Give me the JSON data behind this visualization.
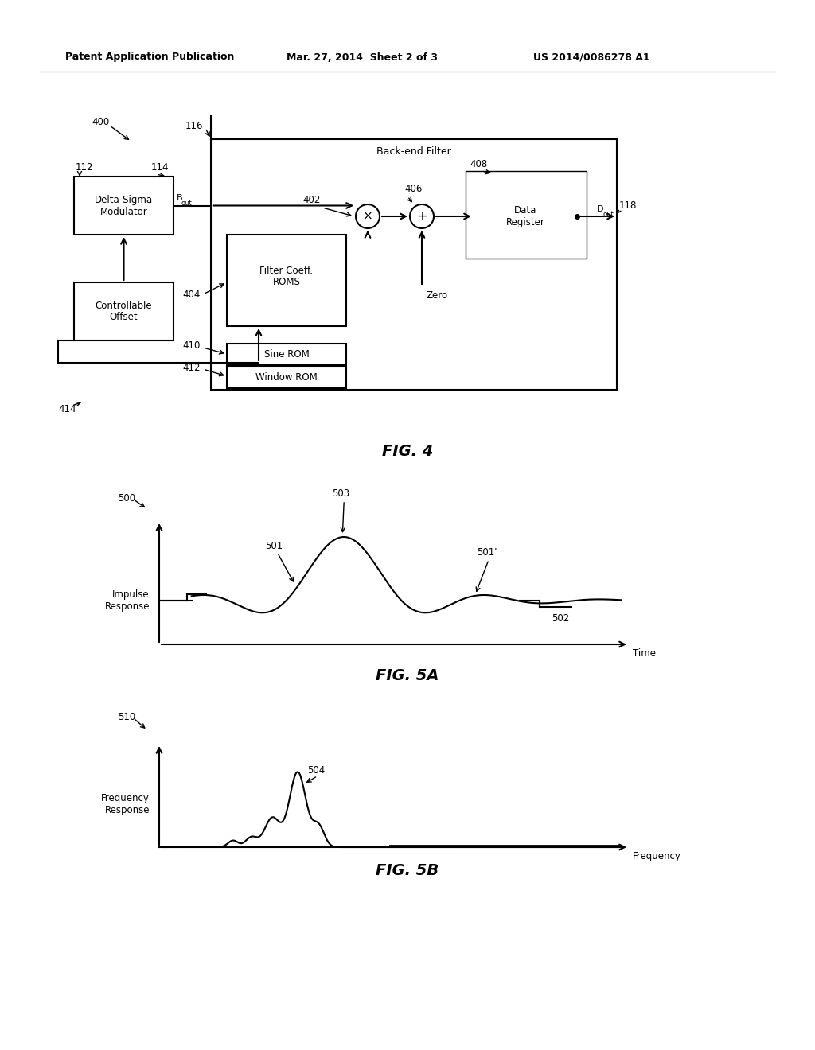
{
  "header_left": "Patent Application Publication",
  "header_center": "Mar. 27, 2014  Sheet 2 of 3",
  "header_right": "US 2014/0086278 A1",
  "fig4_title": "FIG. 4",
  "fig5a_title": "FIG. 5A",
  "fig5b_title": "FIG. 5B",
  "backend_filter_label": "Back-end Filter",
  "box_delta_sigma": "Delta-Sigma\nModulator",
  "box_controllable": "Controllable\nOffset",
  "box_filter_coeff": "Filter Coeff.\nROMS",
  "box_sine_rom": "Sine ROM",
  "box_window_rom": "Window ROM",
  "box_data_register": "Data\nRegister",
  "label_bout": "B",
  "label_bout_sub": "out",
  "label_dout": "D",
  "label_dout_sub": "out",
  "label_zero": "Zero",
  "label_time": "Time",
  "label_frequency": "Frequency",
  "label_impulse_response": "Impulse\nResponse",
  "label_frequency_response": "Frequency\nResponse",
  "num_400": "400",
  "num_112": "112",
  "num_114": "114",
  "num_116": "116",
  "num_402": "402",
  "num_404": "404",
  "num_406": "406",
  "num_408": "408",
  "num_410": "410",
  "num_412": "412",
  "num_414": "414",
  "num_118": "118",
  "num_500": "500",
  "num_501": "501",
  "num_501p": "501'",
  "num_502": "502",
  "num_503": "503",
  "num_510": "510",
  "num_504": "504",
  "bg_color": "#ffffff",
  "line_color": "#000000"
}
